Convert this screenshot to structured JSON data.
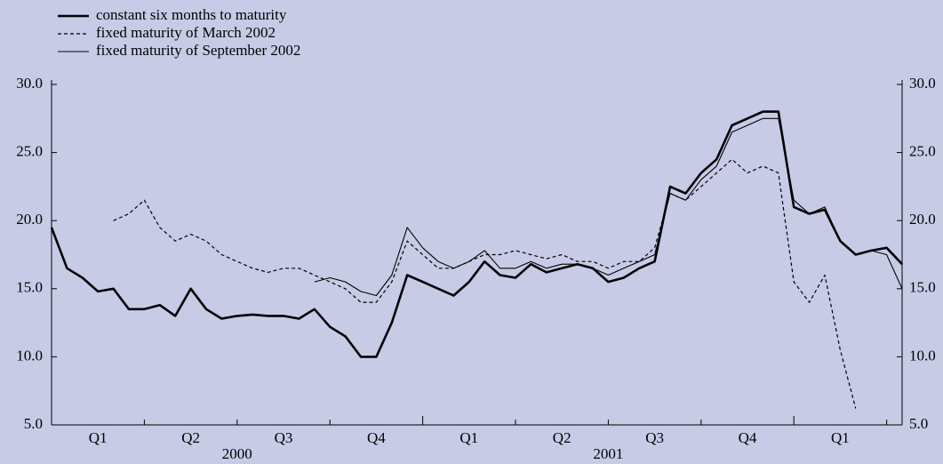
{
  "chart_data": {
    "type": "line",
    "categories": [
      null,
      null,
      null,
      "Q1",
      null,
      null,
      null,
      null,
      null,
      "Q2",
      null,
      null,
      null,
      null,
      null,
      "Q3",
      null,
      null,
      null,
      null,
      null,
      "Q4",
      null,
      null,
      null,
      null,
      null,
      "Q1",
      null,
      null,
      null,
      null,
      null,
      "Q2",
      null,
      null,
      null,
      null,
      null,
      "Q3",
      null,
      null,
      null,
      null,
      null,
      "Q4",
      null,
      null,
      null,
      null,
      null,
      "Q1",
      null,
      null,
      null,
      null
    ],
    "years": [
      "2000",
      "2001"
    ],
    "series": [
      {
        "name": "constant six months to maturity",
        "color": "#000000",
        "style": "solid",
        "width": 2.6,
        "values": [
          19.5,
          16.5,
          15.8,
          14.8,
          15.0,
          13.5,
          13.5,
          13.8,
          13.0,
          15.0,
          13.5,
          12.8,
          13.0,
          13.1,
          13.0,
          13.0,
          12.8,
          13.5,
          12.2,
          11.5,
          10.0,
          10.0,
          12.5,
          16.0,
          15.5,
          15.0,
          14.5,
          15.5,
          17.0,
          16.0,
          15.8,
          16.8,
          16.2,
          16.5,
          16.8,
          16.5,
          15.5,
          15.8,
          16.5,
          17.0,
          22.5,
          22.0,
          23.5,
          24.5,
          27.0,
          27.5,
          28.0,
          28.0,
          21.0,
          20.5,
          20.8,
          18.5,
          17.5,
          17.8,
          18.0,
          16.8
        ]
      },
      {
        "name": "fixed maturity of March 2002",
        "color": "#000000",
        "style": "dashed",
        "width": 1.2,
        "values": [
          null,
          null,
          null,
          null,
          20.0,
          20.5,
          21.5,
          19.5,
          18.5,
          19.0,
          18.5,
          17.5,
          17.0,
          16.5,
          16.2,
          16.5,
          16.5,
          16.0,
          15.5,
          15.0,
          14.0,
          14.0,
          15.5,
          18.5,
          17.5,
          16.5,
          16.5,
          17.0,
          17.5,
          17.5,
          17.8,
          17.5,
          17.2,
          17.5,
          17.0,
          17.0,
          16.5,
          17.0,
          17.0,
          18.0,
          22.0,
          21.5,
          22.5,
          23.5,
          24.5,
          23.5,
          24.0,
          23.5,
          15.5,
          14.0,
          16.0,
          10.5,
          6.2,
          null,
          null,
          null
        ]
      },
      {
        "name": "fixed maturity of September 2002",
        "color": "#000000",
        "style": "solid",
        "width": 1.1,
        "values": [
          null,
          null,
          null,
          null,
          null,
          null,
          null,
          null,
          null,
          null,
          null,
          null,
          null,
          null,
          null,
          null,
          null,
          15.5,
          15.8,
          15.5,
          14.8,
          14.5,
          16.0,
          19.5,
          18.0,
          17.0,
          16.5,
          17.0,
          17.8,
          16.5,
          16.5,
          17.0,
          16.5,
          16.8,
          16.8,
          16.5,
          16.0,
          16.5,
          17.0,
          17.5,
          22.0,
          21.5,
          23.0,
          24.0,
          26.5,
          27.0,
          27.5,
          27.5,
          21.5,
          20.5,
          21.0,
          18.5,
          17.5,
          17.8,
          17.5,
          15.0
        ]
      }
    ],
    "ylim": [
      5,
      30
    ],
    "yticks": [
      {
        "value": 5,
        "label": "5.0"
      },
      {
        "value": 10,
        "label": "10.0"
      },
      {
        "value": 15,
        "label": "15.0"
      },
      {
        "value": 20,
        "label": "20.0"
      },
      {
        "value": 25,
        "label": "25.0"
      },
      {
        "value": 30,
        "label": "30.0"
      }
    ],
    "y2lim": [
      5,
      30
    ],
    "y2ticks": [
      {
        "value": 5,
        "label": "5.0"
      },
      {
        "value": 10,
        "label": "10.0"
      },
      {
        "value": 15,
        "label": "15.0"
      },
      {
        "value": 20,
        "label": "20.0"
      },
      {
        "value": 25,
        "label": "25.0"
      },
      {
        "value": 30,
        "label": "30.0"
      }
    ],
    "legend": "top-left"
  }
}
